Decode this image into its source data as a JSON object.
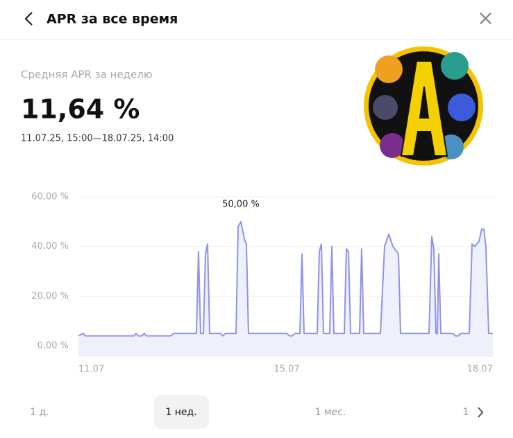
{
  "header": {
    "title": "APR за все время"
  },
  "summary": {
    "label": "Средняя APR за неделю",
    "value": "11,64 %",
    "range": "11.07.25, 15:00—18.07.25, 14:00"
  },
  "chart_data": {
    "type": "area",
    "color": "#8f92ea",
    "fill": "#eef0fb",
    "grid": true,
    "annotation": {
      "text": "50,00 %",
      "x": 14.352,
      "y": 50
    },
    "x": [
      11.625,
      11.707,
      11.742,
      12.557,
      12.592,
      12.627,
      12.686,
      12.732,
      12.767,
      13.175,
      13.222,
      13.606,
      13.641,
      13.676,
      13.723,
      13.758,
      13.793,
      13.828,
      14.014,
      14.049,
      14.096,
      14.271,
      14.306,
      14.352,
      14.411,
      14.445,
      14.48,
      15.122,
      15.168,
      15.215,
      15.261,
      15.343,
      15.378,
      15.413,
      15.634,
      15.669,
      15.704,
      15.739,
      15.844,
      15.879,
      15.914,
      16.089,
      16.124,
      16.159,
      16.194,
      16.345,
      16.38,
      16.415,
      16.695,
      16.765,
      16.835,
      16.905,
      16.998,
      17.033,
      17.511,
      17.557,
      17.592,
      17.627,
      17.651,
      17.674,
      17.709,
      17.907,
      17.954,
      18.0,
      18.047,
      18.187,
      18.233,
      18.28,
      18.35,
      18.396,
      18.431,
      18.466,
      18.513,
      18.583
    ],
    "values": [
      4,
      5,
      4,
      4,
      5,
      4,
      4,
      5,
      4,
      4,
      5,
      5,
      38,
      5,
      5,
      37,
      41,
      5,
      5,
      4,
      5,
      5,
      48,
      50,
      43,
      41,
      5,
      5,
      4,
      4,
      5,
      5,
      37,
      5,
      5,
      38,
      41,
      5,
      5,
      40,
      5,
      5,
      39,
      38,
      5,
      5,
      39,
      5,
      5,
      40,
      45,
      40,
      37,
      5,
      5,
      44,
      39,
      5,
      5,
      37,
      5,
      5,
      4,
      4,
      5,
      5,
      41,
      40,
      42,
      47,
      47,
      40,
      5,
      5
    ],
    "xlim": [
      11.625,
      18.583
    ],
    "ylim": [
      0,
      60
    ],
    "xticks": [
      {
        "value": 11.625,
        "label": "11.07"
      },
      {
        "value": 15.122,
        "label": "15.07"
      },
      {
        "value": 18.583,
        "label": "18.07"
      }
    ],
    "yticks": [
      {
        "value": 0,
        "label": "0,00 %"
      },
      {
        "value": 20,
        "label": "20,00 %"
      },
      {
        "value": 40,
        "label": "40,00 %"
      },
      {
        "value": 60,
        "label": "60,00 %"
      }
    ]
  },
  "periods": {
    "items": [
      "1 д.",
      "1 нед.",
      "1 мес.",
      "1"
    ],
    "selected": 1
  }
}
